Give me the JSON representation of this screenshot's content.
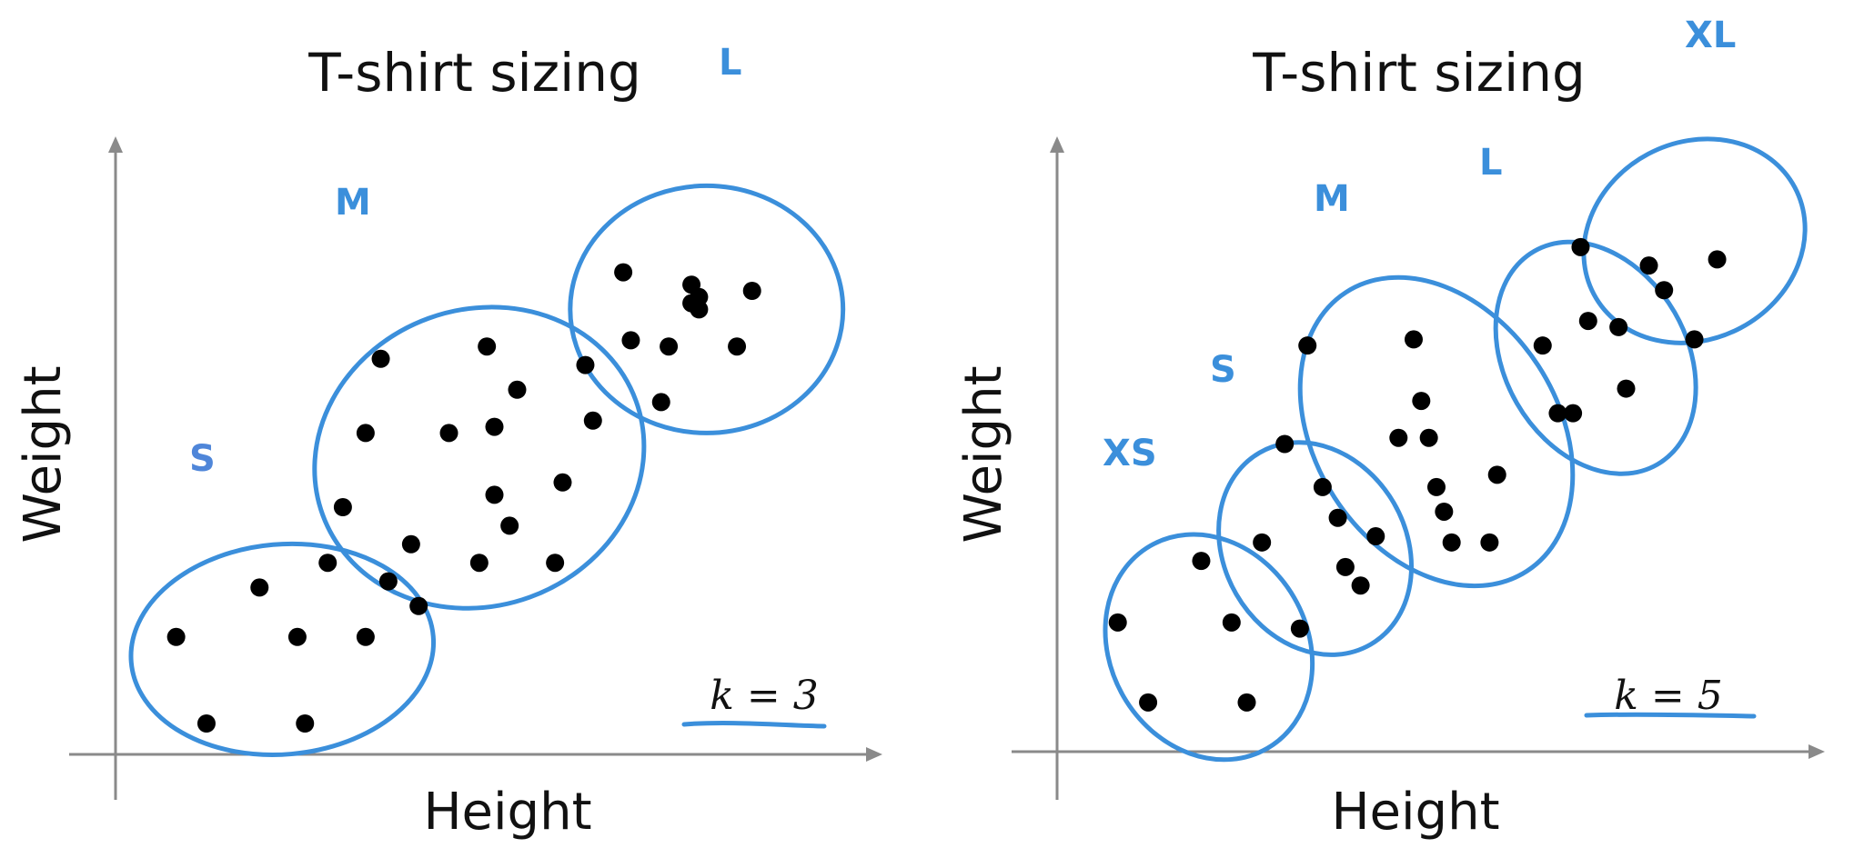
{
  "colors": {
    "cluster": "#3b8fdb",
    "s_label_left": "#4f86d9",
    "axis": "#8a8a8a",
    "point": "#000000",
    "text": "#111111"
  },
  "chart_data": [
    {
      "type": "scatter",
      "title": "T-shirt sizing",
      "xlabel": "Height",
      "ylabel": "Weight",
      "grid": false,
      "k_label": "k = 3",
      "xlim": [
        0,
        100
      ],
      "ylim": [
        0,
        100
      ],
      "points": [
        {
          "x": 8,
          "y": 19
        },
        {
          "x": 12,
          "y": 5
        },
        {
          "x": 19,
          "y": 27
        },
        {
          "x": 24,
          "y": 19
        },
        {
          "x": 25,
          "y": 5
        },
        {
          "x": 28,
          "y": 31
        },
        {
          "x": 33,
          "y": 19
        },
        {
          "x": 36,
          "y": 28
        },
        {
          "x": 40,
          "y": 24
        },
        {
          "x": 30,
          "y": 40
        },
        {
          "x": 33,
          "y": 52
        },
        {
          "x": 35,
          "y": 64
        },
        {
          "x": 44,
          "y": 52
        },
        {
          "x": 39,
          "y": 34
        },
        {
          "x": 48,
          "y": 31
        },
        {
          "x": 49,
          "y": 66
        },
        {
          "x": 50,
          "y": 53
        },
        {
          "x": 50,
          "y": 42
        },
        {
          "x": 52,
          "y": 37
        },
        {
          "x": 53,
          "y": 59
        },
        {
          "x": 58,
          "y": 31
        },
        {
          "x": 59,
          "y": 44
        },
        {
          "x": 62,
          "y": 63
        },
        {
          "x": 63,
          "y": 54
        },
        {
          "x": 67,
          "y": 78
        },
        {
          "x": 68,
          "y": 67
        },
        {
          "x": 73,
          "y": 66
        },
        {
          "x": 76,
          "y": 73
        },
        {
          "x": 77,
          "y": 74
        },
        {
          "x": 77,
          "y": 72
        },
        {
          "x": 82,
          "y": 66
        },
        {
          "x": 84,
          "y": 75
        },
        {
          "x": 72,
          "y": 57
        },
        {
          "x": 76,
          "y": 76
        }
      ],
      "clusters": [
        {
          "label": "S",
          "cx": 22,
          "cy": 17,
          "rx": 20,
          "ry": 17
        },
        {
          "label": "M",
          "cx": 48,
          "cy": 48,
          "rx": 22,
          "ry": 24
        },
        {
          "label": "L",
          "cx": 78,
          "cy": 72,
          "rx": 18,
          "ry": 20
        }
      ]
    },
    {
      "type": "scatter",
      "title": "T-shirt sizing",
      "xlabel": "Height",
      "ylabel": "Weight",
      "grid": false,
      "k_label": "k = 5",
      "xlim": [
        0,
        100
      ],
      "ylim": [
        0,
        100
      ],
      "points": [
        {
          "x": 8,
          "y": 21
        },
        {
          "x": 12,
          "y": 8
        },
        {
          "x": 19,
          "y": 31
        },
        {
          "x": 23,
          "y": 21
        },
        {
          "x": 25,
          "y": 8
        },
        {
          "x": 27,
          "y": 34
        },
        {
          "x": 32,
          "y": 20
        },
        {
          "x": 35,
          "y": 43
        },
        {
          "x": 37,
          "y": 38
        },
        {
          "x": 38,
          "y": 30
        },
        {
          "x": 40,
          "y": 27
        },
        {
          "x": 30,
          "y": 50
        },
        {
          "x": 42,
          "y": 35
        },
        {
          "x": 33,
          "y": 66
        },
        {
          "x": 45,
          "y": 51
        },
        {
          "x": 47,
          "y": 67
        },
        {
          "x": 48,
          "y": 57
        },
        {
          "x": 49,
          "y": 51
        },
        {
          "x": 50,
          "y": 43
        },
        {
          "x": 51,
          "y": 39
        },
        {
          "x": 52,
          "y": 34
        },
        {
          "x": 58,
          "y": 45
        },
        {
          "x": 57,
          "y": 34
        },
        {
          "x": 64,
          "y": 66
        },
        {
          "x": 66,
          "y": 55
        },
        {
          "x": 70,
          "y": 70
        },
        {
          "x": 74,
          "y": 69
        },
        {
          "x": 75,
          "y": 59
        },
        {
          "x": 68,
          "y": 55
        },
        {
          "x": 69,
          "y": 82
        },
        {
          "x": 78,
          "y": 79
        },
        {
          "x": 80,
          "y": 75
        },
        {
          "x": 87,
          "y": 80
        },
        {
          "x": 84,
          "y": 67
        }
      ],
      "clusters": [
        {
          "label": "XS",
          "cx": 20,
          "cy": 17,
          "rx": 13,
          "ry": 19
        },
        {
          "label": "S",
          "cx": 34,
          "cy": 33,
          "rx": 12,
          "ry": 18
        },
        {
          "label": "M",
          "cx": 50,
          "cy": 52,
          "rx": 16,
          "ry": 27
        },
        {
          "label": "L",
          "cx": 71,
          "cy": 64,
          "rx": 12,
          "ry": 20
        },
        {
          "label": "XL",
          "cx": 84,
          "cy": 83,
          "rx": 15,
          "ry": 16
        }
      ]
    }
  ]
}
